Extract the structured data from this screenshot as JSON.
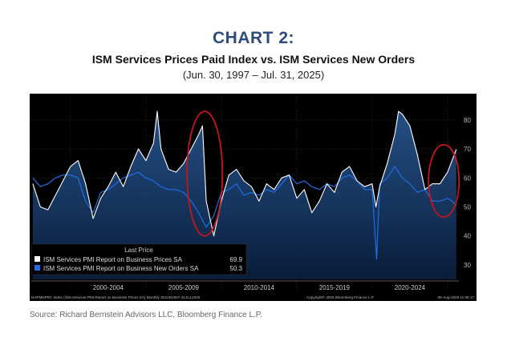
{
  "header": {
    "title": "CHART 2:",
    "subtitle": "ISM Services Prices Paid Index vs. ISM Services New Orders",
    "date_range": "(Jun. 30, 1997 – Jul. 31, 2025)"
  },
  "footer": {
    "source": "Source: Richard Bernstein Advisors LLC, Bloomberg Finance L.P."
  },
  "chart_data": {
    "type": "line",
    "legend_title": "Last Price",
    "legend_placement": "bottom-left",
    "x_period_labels": [
      "2000-2004",
      "2005-2009",
      "2010-2014",
      "2015-2019",
      "2020-2024"
    ],
    "ylim": [
      25,
      88
    ],
    "y_ticks": [
      30,
      40,
      50,
      60,
      70,
      80
    ],
    "footnote_left": "NAPMNPRC Index (ISM Services PMI Report on Business Prices SA)  Monthly 30JUN1997-31JUL2025",
    "footnote_mid": "Copyright© 2025 Bloomberg Finance L.P.",
    "footnote_right": "05-Aug-2025 11:08:17",
    "series": [
      {
        "name": "ISM Services PMI Report on Business Prices SA",
        "last": "69.9",
        "color": "#ffffff",
        "x": [
          1997.5,
          1998.0,
          1998.5,
          1999.0,
          1999.5,
          2000.0,
          2000.5,
          2001.0,
          2001.5,
          2002.0,
          2002.5,
          2003.0,
          2003.5,
          2004.0,
          2004.5,
          2005.0,
          2005.5,
          2005.75,
          2006.0,
          2006.5,
          2007.0,
          2007.5,
          2008.0,
          2008.5,
          2008.75,
          2009.0,
          2009.5,
          2010.0,
          2010.5,
          2011.0,
          2011.5,
          2012.0,
          2012.5,
          2013.0,
          2013.5,
          2014.0,
          2014.5,
          2015.0,
          2015.5,
          2016.0,
          2016.5,
          2017.0,
          2017.5,
          2018.0,
          2018.5,
          2019.0,
          2019.5,
          2020.0,
          2020.25,
          2020.5,
          2021.0,
          2021.5,
          2021.75,
          2022.0,
          2022.5,
          2023.0,
          2023.5,
          2024.0,
          2024.5,
          2025.0,
          2025.3,
          2025.58
        ],
        "values": [
          58,
          50,
          49,
          54,
          59,
          64,
          66,
          58,
          46,
          53,
          57,
          62,
          57,
          64,
          70,
          66,
          72,
          83,
          70,
          63,
          62,
          65,
          70,
          75,
          78,
          52,
          40,
          52,
          61,
          63,
          59,
          57,
          52,
          58,
          56,
          60,
          61,
          53,
          56,
          48,
          52,
          58,
          55,
          62,
          64,
          59,
          57,
          58,
          50,
          57,
          65,
          75,
          83,
          82,
          78,
          68,
          56,
          58,
          58,
          62,
          66,
          69.9
        ]
      },
      {
        "name": "ISM Services PMI Report on Business New Orders SA",
        "last": "50.3",
        "color": "#1e6ee8",
        "x": [
          1997.5,
          1998.0,
          1998.5,
          1999.0,
          1999.5,
          2000.0,
          2000.5,
          2001.0,
          2001.5,
          2002.0,
          2002.5,
          2003.0,
          2003.5,
          2004.0,
          2004.5,
          2005.0,
          2005.5,
          2006.0,
          2006.5,
          2007.0,
          2007.5,
          2008.0,
          2008.5,
          2009.0,
          2009.5,
          2010.0,
          2010.5,
          2011.0,
          2011.5,
          2012.0,
          2012.5,
          2013.0,
          2013.5,
          2014.0,
          2014.5,
          2015.0,
          2015.5,
          2016.0,
          2016.5,
          2017.0,
          2017.5,
          2018.0,
          2018.5,
          2019.0,
          2019.5,
          2020.0,
          2020.3,
          2020.5,
          2021.0,
          2021.5,
          2022.0,
          2022.5,
          2023.0,
          2023.5,
          2024.0,
          2024.5,
          2025.0,
          2025.3,
          2025.58
        ],
        "values": [
          60,
          57,
          58,
          60,
          61,
          61,
          60,
          52,
          48,
          55,
          56,
          58,
          60,
          61,
          62,
          60,
          59,
          57,
          56,
          56,
          55,
          52,
          48,
          43,
          47,
          55,
          56,
          58,
          54,
          55,
          54,
          56,
          55,
          58,
          61,
          58,
          59,
          57,
          56,
          58,
          57,
          60,
          61,
          59,
          56,
          56,
          32,
          58,
          60,
          64,
          60,
          58,
          55,
          56,
          52,
          52,
          53,
          52,
          50.3
        ]
      }
    ]
  }
}
